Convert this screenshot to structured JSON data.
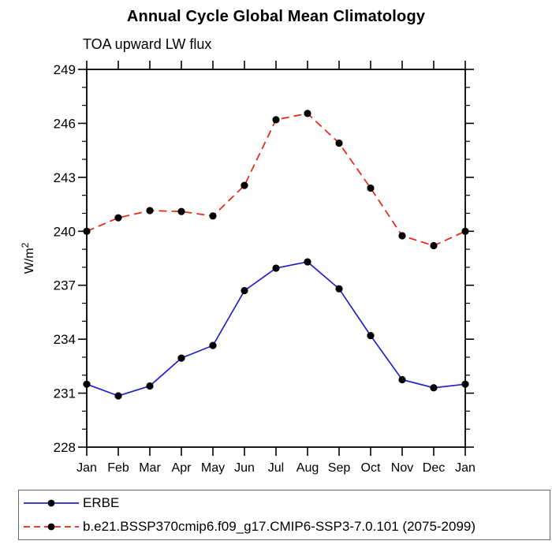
{
  "title": "Annual Cycle Global Mean Climatology",
  "subtitle": "TOA upward LW flux",
  "chart_data": {
    "type": "line",
    "title": "Annual Cycle Global Mean Climatology",
    "subtitle": "TOA upward LW flux",
    "ylabel_text": "W/m",
    "ylabel_sup": "2",
    "categories": [
      "Jan",
      "Feb",
      "Mar",
      "Apr",
      "May",
      "Jun",
      "Jul",
      "Aug",
      "Sep",
      "Oct",
      "Nov",
      "Dec",
      "Jan"
    ],
    "ylim": [
      228,
      249
    ],
    "yticks": [
      228,
      231,
      234,
      237,
      240,
      243,
      246,
      249
    ],
    "ytick_minor_step": 1,
    "grid": false,
    "legend_position": "bottom-left-box",
    "series": [
      {
        "name": "ERBE",
        "color": "#2222cc",
        "style": "solid",
        "marker": "circle",
        "marker_color": "#000000",
        "values": [
          231.5,
          230.85,
          231.4,
          232.95,
          233.65,
          236.7,
          237.95,
          238.3,
          236.8,
          234.2,
          231.75,
          231.3,
          231.5
        ]
      },
      {
        "name": "b.e21.BSSP370cmip6.f09_g17.CMIP6-SSP3-7.0.101 (2075-2099)",
        "color": "#ee2211",
        "style": "dashed",
        "marker": "circle",
        "marker_color": "#000000",
        "values": [
          240.0,
          240.75,
          241.15,
          241.1,
          240.85,
          242.55,
          246.2,
          246.55,
          244.9,
          242.4,
          239.75,
          239.2,
          240.0
        ]
      }
    ]
  }
}
